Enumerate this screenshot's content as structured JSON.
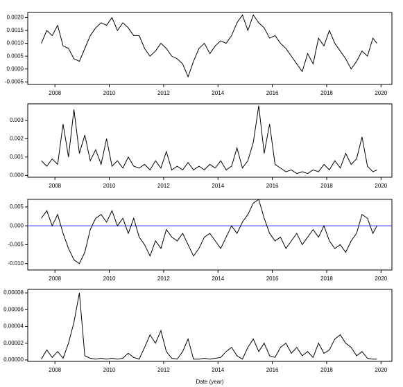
{
  "chart_data": [
    {
      "type": "line",
      "xlim": [
        2007,
        2020.4
      ],
      "xticks": [
        2008,
        2010,
        2012,
        2014,
        2016,
        2018,
        2020
      ],
      "ylim": [
        -0.0006,
        0.0022
      ],
      "yticks": [
        {
          "value": -0.0005,
          "label": "-0.0005"
        },
        {
          "value": 0,
          "label": "0.0000"
        },
        {
          "value": 0.0005,
          "label": "0.0005"
        },
        {
          "value": 0.001,
          "label": "0.0010"
        },
        {
          "value": 0.0015,
          "label": "0.0015"
        },
        {
          "value": 0.002,
          "label": "0.0020"
        }
      ],
      "color": "#000000",
      "x": [
        2007.5,
        2007.7,
        2007.9,
        2008.1,
        2008.3,
        2008.5,
        2008.7,
        2008.9,
        2009.1,
        2009.3,
        2009.5,
        2009.7,
        2009.9,
        2010.1,
        2010.3,
        2010.5,
        2010.7,
        2010.9,
        2011.1,
        2011.3,
        2011.5,
        2011.7,
        2011.9,
        2012.1,
        2012.3,
        2012.5,
        2012.7,
        2012.9,
        2013.1,
        2013.3,
        2013.5,
        2013.7,
        2013.9,
        2014.1,
        2014.3,
        2014.5,
        2014.7,
        2014.9,
        2015.1,
        2015.3,
        2015.5,
        2015.7,
        2015.9,
        2016.1,
        2016.3,
        2016.5,
        2016.7,
        2016.9,
        2017.1,
        2017.3,
        2017.5,
        2017.7,
        2017.9,
        2018.1,
        2018.3,
        2018.5,
        2018.7,
        2018.9,
        2019.1,
        2019.3,
        2019.5,
        2019.7,
        2019.85
      ],
      "y": [
        0.001,
        0.0015,
        0.0013,
        0.0017,
        0.0009,
        0.0008,
        0.0004,
        0.0003,
        0.0008,
        0.0013,
        0.0016,
        0.0018,
        0.0017,
        0.002,
        0.0015,
        0.0018,
        0.0016,
        0.0013,
        0.0013,
        0.0008,
        0.0005,
        0.0007,
        0.001,
        0.0008,
        0.0005,
        0.0004,
        0.0002,
        -0.0003,
        0.0003,
        0.0008,
        0.001,
        0.0006,
        0.0009,
        0.0011,
        0.001,
        0.0013,
        0.0018,
        0.0021,
        0.0015,
        0.0021,
        0.0018,
        0.0016,
        0.0012,
        0.0013,
        0.001,
        0.0008,
        0.0005,
        0.0002,
        -0.0001,
        0.0006,
        0.0002,
        0.0012,
        0.0009,
        0.0015,
        0.001,
        0.0007,
        0.0004,
        0,
        0.0003,
        0.0007,
        0.0005,
        0.0012,
        0.001
      ]
    },
    {
      "type": "line",
      "xlim": [
        2007,
        2020.4
      ],
      "xticks": [
        2008,
        2010,
        2012,
        2014,
        2016,
        2018,
        2020
      ],
      "ylim": [
        -0.0001,
        0.0039
      ],
      "yticks": [
        {
          "value": 0,
          "label": "0.000"
        },
        0.001,
        0.002,
        0.003
      ],
      "color": "#000000",
      "x": [
        2007.5,
        2007.7,
        2007.9,
        2008.1,
        2008.3,
        2008.5,
        2008.7,
        2008.9,
        2009.1,
        2009.3,
        2009.5,
        2009.7,
        2009.9,
        2010.1,
        2010.3,
        2010.5,
        2010.7,
        2010.9,
        2011.1,
        2011.3,
        2011.5,
        2011.7,
        2011.9,
        2012.1,
        2012.3,
        2012.5,
        2012.7,
        2012.9,
        2013.1,
        2013.3,
        2013.5,
        2013.7,
        2013.9,
        2014.1,
        2014.3,
        2014.5,
        2014.7,
        2014.9,
        2015.1,
        2015.3,
        2015.5,
        2015.7,
        2015.9,
        2016.1,
        2016.3,
        2016.5,
        2016.7,
        2016.9,
        2017.1,
        2017.3,
        2017.5,
        2017.7,
        2017.9,
        2018.1,
        2018.3,
        2018.5,
        2018.7,
        2018.9,
        2019.1,
        2019.3,
        2019.5,
        2019.7,
        2019.85
      ],
      "y": [
        0.0008,
        0.0005,
        0.0009,
        0.0006,
        0.0028,
        0.001,
        0.0036,
        0.0012,
        0.0022,
        0.0008,
        0.0014,
        0.0006,
        0.002,
        0.0005,
        0.0008,
        0.0004,
        0.001,
        0.0005,
        0.0004,
        0.0006,
        0.0003,
        0.0008,
        0.0004,
        0.0013,
        0.0003,
        0.0005,
        0.0003,
        0.0007,
        0.0003,
        0.0005,
        0.0003,
        0.0006,
        0.0004,
        0.0008,
        0.0003,
        0.0005,
        0.0015,
        0.0004,
        0.0008,
        0.0018,
        0.0038,
        0.0012,
        0.0028,
        0.0006,
        0.0004,
        0.0002,
        0.0003,
        0.0001,
        0.0002,
        0.0001,
        0.0003,
        0.0002,
        0.0006,
        0.0003,
        0.0008,
        0.0004,
        0.0012,
        0.0006,
        0.0009,
        0.0021,
        0.0005,
        0.0002,
        0.0003
      ]
    },
    {
      "type": "line",
      "xlim": [
        2007,
        2020.4
      ],
      "xticks": [
        2008,
        2010,
        2012,
        2014,
        2016,
        2018,
        2020
      ],
      "ylim": [
        -0.0117,
        0.007
      ],
      "yticks": [
        {
          "value": -0.01,
          "label": "-0.010"
        },
        {
          "value": -0.005,
          "label": "-0.005"
        },
        {
          "value": 0,
          "label": "0.000"
        },
        0.005
      ],
      "color": "#000000",
      "hline": 0,
      "hline_color": "#3333ff",
      "x": [
        2007.5,
        2007.7,
        2007.9,
        2008.1,
        2008.3,
        2008.5,
        2008.7,
        2008.9,
        2009.1,
        2009.3,
        2009.5,
        2009.7,
        2009.9,
        2010.1,
        2010.3,
        2010.5,
        2010.7,
        2010.9,
        2011.1,
        2011.3,
        2011.5,
        2011.7,
        2011.9,
        2012.1,
        2012.3,
        2012.5,
        2012.7,
        2012.9,
        2013.1,
        2013.3,
        2013.5,
        2013.7,
        2013.9,
        2014.1,
        2014.3,
        2014.5,
        2014.7,
        2014.9,
        2015.1,
        2015.3,
        2015.5,
        2015.7,
        2015.9,
        2016.1,
        2016.3,
        2016.5,
        2016.7,
        2016.9,
        2017.1,
        2017.3,
        2017.5,
        2017.7,
        2017.9,
        2018.1,
        2018.3,
        2018.5,
        2018.7,
        2018.9,
        2019.1,
        2019.3,
        2019.5,
        2019.7,
        2019.85
      ],
      "y": [
        0.002,
        0.004,
        0,
        0.003,
        -0.002,
        -0.006,
        -0.009,
        -0.01,
        -0.007,
        -0.001,
        0.002,
        0.003,
        0.001,
        0.004,
        0,
        0.002,
        -0.002,
        0.002,
        -0.003,
        -0.005,
        -0.008,
        -0.004,
        -0.006,
        -0.001,
        -0.003,
        -0.004,
        -0.002,
        -0.005,
        -0.008,
        -0.006,
        -0.003,
        -0.002,
        -0.004,
        -0.006,
        -0.003,
        0,
        -0.002,
        0.001,
        0.003,
        0.006,
        0.007,
        0.002,
        -0.002,
        -0.004,
        -0.003,
        -0.006,
        -0.004,
        -0.002,
        -0.005,
        -0.003,
        -0.001,
        -0.003,
        0,
        -0.004,
        -0.006,
        -0.005,
        -0.007,
        -0.004,
        -0.002,
        0.003,
        0.002,
        -0.002,
        0
      ]
    },
    {
      "type": "line",
      "xlim": [
        2007,
        2020.4
      ],
      "xticks": [
        2008,
        2010,
        2012,
        2014,
        2016,
        2018,
        2020
      ],
      "ylim": [
        -1.7e-06,
        8.42e-05
      ],
      "yticks": [
        {
          "value": 0,
          "label": "0.00000"
        },
        {
          "value": 2e-05,
          "label": "0.00002"
        },
        {
          "value": 4e-05,
          "label": "0.00004"
        },
        {
          "value": 6e-05,
          "label": "0.00006"
        },
        {
          "value": 8e-05,
          "label": "0.00008"
        }
      ],
      "color": "#000000",
      "x_label": "Date (year)",
      "x": [
        2007.5,
        2007.7,
        2007.9,
        2008.1,
        2008.3,
        2008.5,
        2008.7,
        2008.9,
        2009.1,
        2009.3,
        2009.5,
        2009.7,
        2009.9,
        2010.1,
        2010.3,
        2010.5,
        2010.7,
        2010.9,
        2011.1,
        2011.3,
        2011.5,
        2011.7,
        2011.9,
        2012.1,
        2012.3,
        2012.5,
        2012.7,
        2012.9,
        2013.1,
        2013.3,
        2013.5,
        2013.7,
        2013.9,
        2014.1,
        2014.3,
        2014.5,
        2014.7,
        2014.9,
        2015.1,
        2015.3,
        2015.5,
        2015.7,
        2015.9,
        2016.1,
        2016.3,
        2016.5,
        2016.7,
        2016.9,
        2017.1,
        2017.3,
        2017.5,
        2017.7,
        2017.9,
        2018.1,
        2018.3,
        2018.5,
        2018.7,
        2018.9,
        2019.1,
        2019.3,
        2019.5,
        2019.7,
        2019.85
      ],
      "y": [
        1e-06,
        1.2e-05,
        3e-06,
        1e-05,
        2e-06,
        2e-05,
        4.5e-05,
        8e-05,
        5e-06,
        2e-06,
        1e-06,
        2e-06,
        1e-06,
        2e-06,
        1e-06,
        2e-06,
        8e-06,
        3e-06,
        1e-06,
        1.5e-05,
        3e-05,
        2e-05,
        3.5e-05,
        1e-05,
        2e-06,
        1e-06,
        1e-05,
        2.5e-05,
        1e-06,
        1e-06,
        2e-06,
        1e-06,
        2e-06,
        3e-06,
        1e-05,
        1.5e-05,
        5e-06,
        1e-06,
        1.5e-05,
        2.5e-05,
        1e-05,
        2e-05,
        5e-06,
        3e-06,
        1.5e-05,
        2e-05,
        8e-06,
        1.5e-05,
        5e-06,
        1e-05,
        3e-06,
        2e-05,
        8e-06,
        1.2e-05,
        2.5e-05,
        3e-05,
        2e-05,
        1.5e-05,
        5e-06,
        1e-05,
        2e-06,
        1e-06,
        1e-06
      ]
    }
  ]
}
